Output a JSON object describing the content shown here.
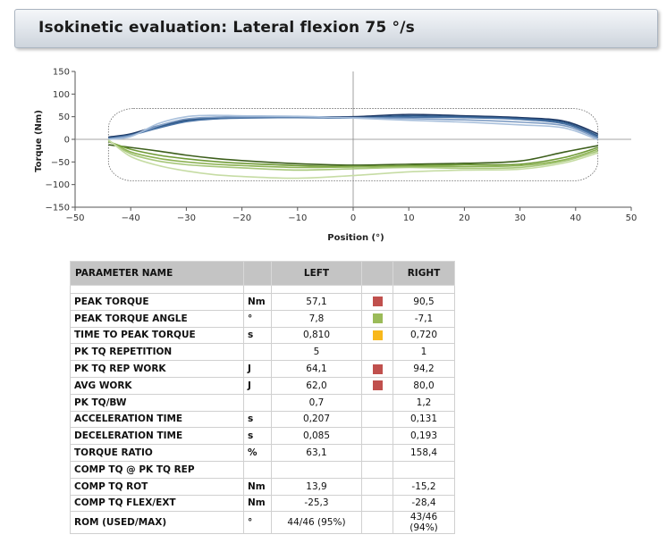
{
  "header": {
    "title": "Isokinetic evaluation: Lateral flexion 75 °/s"
  },
  "chart_data": {
    "type": "line",
    "title": "",
    "xlabel": "Position (°)",
    "ylabel": "Torque (Nm)",
    "xlim": [
      -50,
      50
    ],
    "ylim": [
      -150,
      150
    ],
    "xticks": [
      -50,
      -40,
      -30,
      -20,
      -10,
      0,
      10,
      20,
      30,
      40,
      50
    ],
    "yticks": [
      150,
      100,
      50,
      0,
      -50,
      -100,
      -150
    ],
    "grid": false,
    "zero_lines": true,
    "envelope": {
      "x": [
        -44,
        44
      ],
      "y": [
        -92,
        68
      ]
    },
    "series": [
      {
        "color": "#1f3864",
        "x": [
          -44,
          -40,
          -35,
          -30,
          -25,
          -20,
          -10,
          0,
          10,
          20,
          30,
          38,
          44
        ],
        "y": [
          5,
          12,
          30,
          43,
          48,
          50,
          50,
          50,
          55,
          52,
          48,
          40,
          12
        ]
      },
      {
        "color": "#2e5a8a",
        "x": [
          -44,
          -40,
          -35,
          -30,
          -25,
          -20,
          -10,
          0,
          10,
          20,
          30,
          38,
          44
        ],
        "y": [
          3,
          10,
          27,
          41,
          47,
          49,
          49,
          48,
          52,
          50,
          46,
          37,
          8
        ]
      },
      {
        "color": "#4a73a5",
        "x": [
          -44,
          -40,
          -35,
          -30,
          -25,
          -20,
          -10,
          0,
          10,
          20,
          30,
          38,
          44
        ],
        "y": [
          2,
          9,
          25,
          39,
          45,
          47,
          48,
          47,
          49,
          48,
          44,
          34,
          5
        ]
      },
      {
        "color": "#7f9dc4",
        "x": [
          -44,
          -40,
          -35,
          -30,
          -25,
          -20,
          -10,
          0,
          10,
          20,
          30,
          38,
          44
        ],
        "y": [
          1,
          8,
          30,
          45,
          49,
          50,
          50,
          48,
          46,
          43,
          38,
          30,
          2
        ]
      },
      {
        "color": "#a9c0dc",
        "x": [
          -44,
          -40,
          -35,
          -30,
          -25,
          -20,
          -10,
          0,
          10,
          20,
          30,
          38,
          44
        ],
        "y": [
          0,
          6,
          35,
          50,
          53,
          52,
          51,
          47,
          42,
          38,
          32,
          25,
          -1
        ]
      },
      {
        "color": "#3d5f1c",
        "x": [
          -44,
          -40,
          -35,
          -30,
          -25,
          -20,
          -10,
          0,
          10,
          20,
          30,
          38,
          44
        ],
        "y": [
          -12,
          -18,
          -26,
          -35,
          -42,
          -47,
          -54,
          -57,
          -55,
          -53,
          -48,
          -28,
          -14
        ]
      },
      {
        "color": "#6f9a36",
        "x": [
          -44,
          -40,
          -35,
          -30,
          -25,
          -20,
          -10,
          0,
          10,
          20,
          30,
          38,
          44
        ],
        "y": [
          -5,
          -22,
          -35,
          -43,
          -49,
          -53,
          -58,
          -60,
          -58,
          -56,
          -55,
          -40,
          -18
        ]
      },
      {
        "color": "#8db254",
        "x": [
          -44,
          -40,
          -35,
          -30,
          -25,
          -20,
          -10,
          0,
          10,
          20,
          30,
          38,
          44
        ],
        "y": [
          -3,
          -28,
          -42,
          -50,
          -55,
          -58,
          -62,
          -61,
          -60,
          -60,
          -58,
          -45,
          -22
        ]
      },
      {
        "color": "#a7c77a",
        "x": [
          -44,
          -40,
          -35,
          -30,
          -25,
          -20,
          -10,
          0,
          10,
          20,
          30,
          38,
          44
        ],
        "y": [
          -2,
          -32,
          -48,
          -56,
          -60,
          -63,
          -68,
          -65,
          -62,
          -64,
          -62,
          -48,
          -26
        ]
      },
      {
        "color": "#c6dca4",
        "x": [
          -44,
          -40,
          -35,
          -30,
          -25,
          -20,
          -10,
          0,
          10,
          20,
          30,
          38,
          44
        ],
        "y": [
          -1,
          -38,
          -58,
          -70,
          -78,
          -82,
          -86,
          -80,
          -72,
          -68,
          -66,
          -52,
          -30
        ]
      }
    ]
  },
  "table": {
    "headers": {
      "name": "PARAMETER NAME",
      "left": "LEFT",
      "right": "RIGHT"
    },
    "rows_a": [
      {
        "name": "PEAK TORQUE",
        "unit": "Nm",
        "left": "57,1",
        "indicator_color": "#c0504d",
        "right": "90,5"
      },
      {
        "name": "PEAK TORQUE ANGLE",
        "unit": "°",
        "left": "7,8",
        "indicator_color": "#9bbb59",
        "right": "-7,1"
      },
      {
        "name": "TIME TO PEAK TORQUE",
        "unit": "s",
        "left": "0,810",
        "indicator_color": "#f8b81c",
        "right": "0,720"
      },
      {
        "name": "PK TQ REPETITION",
        "unit": "",
        "left": "5",
        "indicator_color": "",
        "right": "1"
      },
      {
        "name": "PK TQ REP WORK",
        "unit": "J",
        "left": "64,1",
        "indicator_color": "#c0504d",
        "right": "94,2"
      },
      {
        "name": "AVG WORK",
        "unit": "J",
        "left": "62,0",
        "indicator_color": "#c0504d",
        "right": "80,0"
      },
      {
        "name": "PK TQ/BW",
        "unit": "",
        "left": "0,7",
        "indicator_color": "",
        "right": "1,2"
      },
      {
        "name": "ACCELERATION TIME",
        "unit": "s",
        "left": "0,207",
        "indicator_color": "",
        "right": "0,131"
      },
      {
        "name": "DECELERATION TIME",
        "unit": "s",
        "left": "0,085",
        "indicator_color": "",
        "right": "0,193"
      },
      {
        "name": "TORQUE RATIO",
        "unit": "%",
        "left": "63,1",
        "indicator_color": "",
        "right": "158,4"
      },
      {
        "name": "COMP TQ @ PK TQ REP",
        "unit": "",
        "left": "",
        "indicator_color": "",
        "right": ""
      },
      {
        "name": "COMP TQ ROT",
        "unit": "Nm",
        "left": "13,9",
        "indicator_color": "",
        "right": "-15,2"
      },
      {
        "name": "COMP TQ FLEX/EXT",
        "unit": "Nm",
        "left": "-25,3",
        "indicator_color": "",
        "right": "-28,4"
      },
      {
        "name": "ROM (USED/MAX)",
        "unit": "°",
        "left": "44/46 (95%)",
        "indicator_color": "",
        "right": "43/46 (94%)"
      }
    ]
  }
}
